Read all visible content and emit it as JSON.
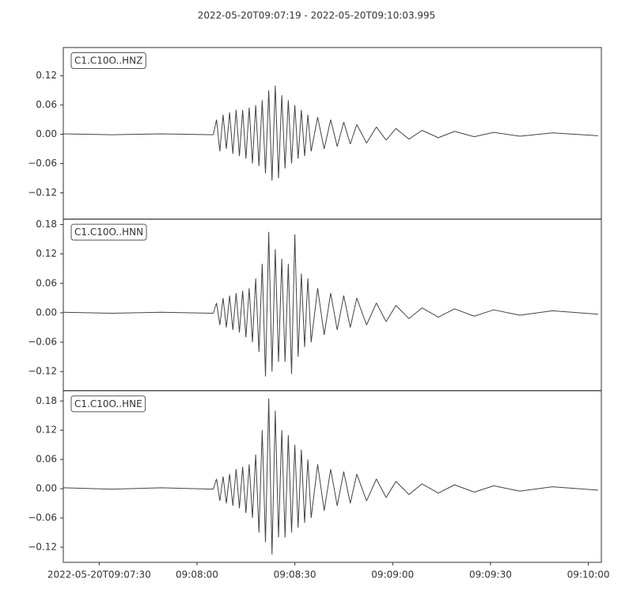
{
  "chart_data": {
    "type": "line",
    "title": "2022-05-20T09:07:19  -  2022-05-20T09:10:03.995",
    "xlim": [
      "2022-05-20T09:07:19",
      "2022-05-20T09:10:03.995"
    ],
    "xticks": [
      "2022-05-20T09:07:30",
      {
        "value": "2022-05-20T09:08:00",
        "label": "09:08:00"
      },
      {
        "value": "2022-05-20T09:08:30",
        "label": "09:08:30"
      },
      {
        "value": "2022-05-20T09:09:00",
        "label": "09:09:00"
      },
      {
        "value": "2022-05-20T09:09:30",
        "label": "09:09:30"
      },
      {
        "value": "2022-05-20T09:10:00",
        "label": "09:10:00"
      }
    ],
    "x": [
      "2022-05-20T09:07:19",
      "2022-05-20T09:07:34",
      "2022-05-20T09:07:49",
      "2022-05-20T09:08:05",
      "2022-05-20T09:08:06",
      "2022-05-20T09:08:07",
      "2022-05-20T09:08:08",
      "2022-05-20T09:08:09",
      "2022-05-20T09:08:10",
      "2022-05-20T09:08:11",
      "2022-05-20T09:08:12",
      "2022-05-20T09:08:13",
      "2022-05-20T09:08:14",
      "2022-05-20T09:08:15",
      "2022-05-20T09:08:16",
      "2022-05-20T09:08:17",
      "2022-05-20T09:08:18",
      "2022-05-20T09:08:19",
      "2022-05-20T09:08:20",
      "2022-05-20T09:08:21",
      "2022-05-20T09:08:22",
      "2022-05-20T09:08:23",
      "2022-05-20T09:08:24",
      "2022-05-20T09:08:25",
      "2022-05-20T09:08:26",
      "2022-05-20T09:08:27",
      "2022-05-20T09:08:28",
      "2022-05-20T09:08:29",
      "2022-05-20T09:08:30",
      "2022-05-20T09:08:31",
      "2022-05-20T09:08:32",
      "2022-05-20T09:08:33",
      "2022-05-20T09:08:34",
      "2022-05-20T09:08:35",
      "2022-05-20T09:08:37",
      "2022-05-20T09:08:39",
      "2022-05-20T09:08:41",
      "2022-05-20T09:08:43",
      "2022-05-20T09:08:45",
      "2022-05-20T09:08:47",
      "2022-05-20T09:08:49",
      "2022-05-20T09:08:52",
      "2022-05-20T09:08:55",
      "2022-05-20T09:08:58",
      "2022-05-20T09:09:01",
      "2022-05-20T09:09:05",
      "2022-05-20T09:09:09",
      "2022-05-20T09:09:14",
      "2022-05-20T09:09:19",
      "2022-05-20T09:09:25",
      "2022-05-20T09:09:31",
      "2022-05-20T09:09:39",
      "2022-05-20T09:09:49",
      "2022-05-20T09:10:03"
    ],
    "series": [
      {
        "name": "C1.C10O..HNZ",
        "color": "#444444",
        "ylim": [
          -0.174,
          0.178
        ],
        "yticks": [
          {
            "value": -0.12,
            "label": "−0.12"
          },
          {
            "value": -0.06,
            "label": "−0.06"
          },
          {
            "value": 0,
            "label": "0.00"
          },
          0.06,
          0.12
        ],
        "values": [
          0.001,
          -0.001,
          0.001,
          -0.001,
          0.03,
          -0.035,
          0.04,
          -0.03,
          0.045,
          -0.04,
          0.05,
          -0.045,
          0.05,
          -0.05,
          0.055,
          -0.06,
          0.06,
          -0.065,
          0.07,
          -0.08,
          0.09,
          -0.095,
          0.1,
          -0.09,
          0.08,
          -0.07,
          0.07,
          -0.06,
          0.06,
          -0.05,
          0.05,
          -0.045,
          0.04,
          -0.035,
          0.035,
          -0.03,
          0.03,
          -0.025,
          0.025,
          -0.02,
          0.02,
          -0.018,
          0.015,
          -0.012,
          0.012,
          -0.01,
          0.008,
          -0.007,
          0.006,
          -0.005,
          0.004,
          -0.004,
          0.003,
          -0.003
        ]
      },
      {
        "name": "C1.C10O..HNN",
        "color": "#444444",
        "ylim": [
          -0.159,
          0.191
        ],
        "yticks": [
          {
            "value": -0.12,
            "label": "−0.12"
          },
          {
            "value": -0.06,
            "label": "−0.06"
          },
          {
            "value": 0,
            "label": "0.00"
          },
          0.06,
          0.12,
          0.18
        ],
        "values": [
          0.001,
          -0.001,
          0.001,
          -0.001,
          0.02,
          -0.025,
          0.03,
          -0.03,
          0.035,
          -0.035,
          0.04,
          -0.04,
          0.045,
          -0.05,
          0.05,
          -0.06,
          0.07,
          -0.08,
          0.1,
          -0.13,
          0.165,
          -0.12,
          0.13,
          -0.1,
          0.11,
          -0.1,
          0.1,
          -0.125,
          0.16,
          -0.09,
          0.08,
          -0.07,
          0.07,
          -0.06,
          0.05,
          -0.045,
          0.04,
          -0.035,
          0.035,
          -0.03,
          0.03,
          -0.025,
          0.02,
          -0.018,
          0.015,
          -0.012,
          0.01,
          -0.009,
          0.008,
          -0.007,
          0.006,
          -0.005,
          0.004,
          -0.003
        ]
      },
      {
        "name": "C1.C10O..HNE",
        "color": "#444444",
        "ylim": [
          -0.151,
          0.201
        ],
        "yticks": [
          {
            "value": -0.12,
            "label": "−0.12"
          },
          {
            "value": -0.06,
            "label": "−0.06"
          },
          {
            "value": 0,
            "label": "0.00"
          },
          0.06,
          0.12,
          0.18
        ],
        "values": [
          0.002,
          -0.001,
          0.002,
          -0.001,
          0.02,
          -0.025,
          0.025,
          -0.03,
          0.03,
          -0.035,
          0.04,
          -0.04,
          0.045,
          -0.05,
          0.05,
          -0.06,
          0.07,
          -0.09,
          0.12,
          -0.11,
          0.185,
          -0.135,
          0.16,
          -0.1,
          0.12,
          -0.1,
          0.11,
          -0.09,
          0.09,
          -0.08,
          0.08,
          -0.07,
          0.06,
          -0.06,
          0.05,
          -0.045,
          0.04,
          -0.035,
          0.035,
          -0.03,
          0.03,
          -0.025,
          0.02,
          -0.018,
          0.015,
          -0.012,
          0.01,
          -0.009,
          0.008,
          -0.007,
          0.006,
          -0.005,
          0.004,
          -0.003
        ]
      }
    ]
  }
}
